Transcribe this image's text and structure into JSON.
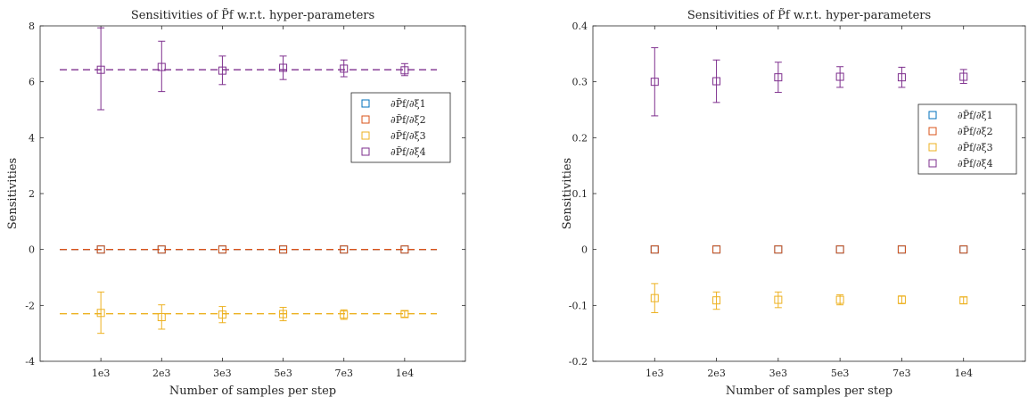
{
  "chart_data": [
    {
      "type": "scatter",
      "title": "Sensitivities of P̃f w.r.t. hyper-parameters",
      "xlabel": "Number of samples per step",
      "ylabel": "Sensitivities",
      "categories": [
        "1e3",
        "2e3",
        "3e3",
        "5e3",
        "7e3",
        "1e4"
      ],
      "ylim": [
        -4,
        8
      ],
      "yticks": [
        "-4",
        "-2",
        "0",
        "2",
        "4",
        "6",
        "8"
      ],
      "yticks_values": [
        -4,
        -2,
        0,
        2,
        4,
        6,
        8
      ],
      "grid": false,
      "legend_position": "right",
      "series": [
        {
          "name": "∂P̃f/∂ξ1",
          "color": "#0072BD",
          "values": [
            0,
            0,
            0,
            0,
            0,
            0
          ],
          "err_low": [
            0,
            0,
            0,
            0,
            0,
            0
          ],
          "err_high": [
            0,
            0,
            0,
            0,
            0,
            0
          ],
          "mean_line": 0
        },
        {
          "name": "∂P̃f/∂ξ2",
          "color": "#D95319",
          "values": [
            0,
            0,
            0,
            0,
            0,
            0
          ],
          "err_low": [
            0,
            0,
            0,
            0,
            0,
            0
          ],
          "err_high": [
            0,
            0,
            0,
            0,
            0,
            0
          ],
          "mean_line": 0
        },
        {
          "name": "∂P̃f/∂ξ3",
          "color": "#EDB120",
          "values": [
            -2.27,
            -2.42,
            -2.33,
            -2.31,
            -2.33,
            -2.31
          ],
          "err_low": [
            -3.0,
            -2.85,
            -2.62,
            -2.55,
            -2.5,
            -2.42
          ],
          "err_high": [
            -1.52,
            -1.98,
            -2.04,
            -2.07,
            -2.16,
            -2.2
          ],
          "mean_line": -2.3
        },
        {
          "name": "∂P̃f/∂ξ4",
          "color": "#7E2F8E",
          "values": [
            6.43,
            6.53,
            6.4,
            6.5,
            6.47,
            6.41
          ],
          "err_low": [
            5.0,
            5.65,
            5.9,
            6.08,
            6.18,
            6.22
          ],
          "err_high": [
            7.93,
            7.45,
            6.92,
            6.92,
            6.78,
            6.65
          ],
          "mean_line": 6.43
        }
      ]
    },
    {
      "type": "scatter",
      "title": "Sensitivities of P̃f w.r.t. hyper-parameters",
      "xlabel": "Number of samples per step",
      "ylabel": "Sensitivities",
      "categories": [
        "1e3",
        "2e3",
        "3e3",
        "5e3",
        "7e3",
        "1e4"
      ],
      "ylim": [
        -0.2,
        0.4
      ],
      "yticks": [
        "-0.2",
        "-0.1",
        "0",
        "0.1",
        "0.2",
        "0.3",
        "0.4"
      ],
      "yticks_values": [
        -0.2,
        -0.1,
        0,
        0.1,
        0.2,
        0.3,
        0.4
      ],
      "grid": false,
      "legend_position": "right",
      "series": [
        {
          "name": "∂P̃f/∂ξ1",
          "color": "#0072BD",
          "values": [
            0,
            0,
            0,
            0,
            0,
            0
          ],
          "err_low": [
            0,
            0,
            0,
            0,
            0,
            0
          ],
          "err_high": [
            0,
            0,
            0,
            0,
            0,
            0
          ]
        },
        {
          "name": "∂P̃f/∂ξ2",
          "color": "#D95319",
          "values": [
            0,
            0,
            0,
            0,
            0,
            0
          ],
          "err_low": [
            0,
            0,
            0,
            0,
            0,
            0
          ],
          "err_high": [
            0,
            0,
            0,
            0,
            0,
            0
          ]
        },
        {
          "name": "∂P̃f/∂ξ3",
          "color": "#EDB120",
          "values": [
            -0.087,
            -0.091,
            -0.09,
            -0.09,
            -0.09,
            -0.091
          ],
          "err_low": [
            -0.113,
            -0.107,
            -0.104,
            -0.099,
            -0.097,
            -0.097
          ],
          "err_high": [
            -0.061,
            -0.076,
            -0.076,
            -0.081,
            -0.083,
            -0.085
          ],
          "mean_line": null
        },
        {
          "name": "∂P̃f/∂ξ4",
          "color": "#7E2F8E",
          "values": [
            0.3,
            0.301,
            0.308,
            0.309,
            0.308,
            0.309
          ],
          "err_low": [
            0.239,
            0.263,
            0.281,
            0.29,
            0.29,
            0.297
          ],
          "err_high": [
            0.361,
            0.339,
            0.335,
            0.327,
            0.326,
            0.322
          ],
          "mean_line": null
        }
      ]
    }
  ]
}
